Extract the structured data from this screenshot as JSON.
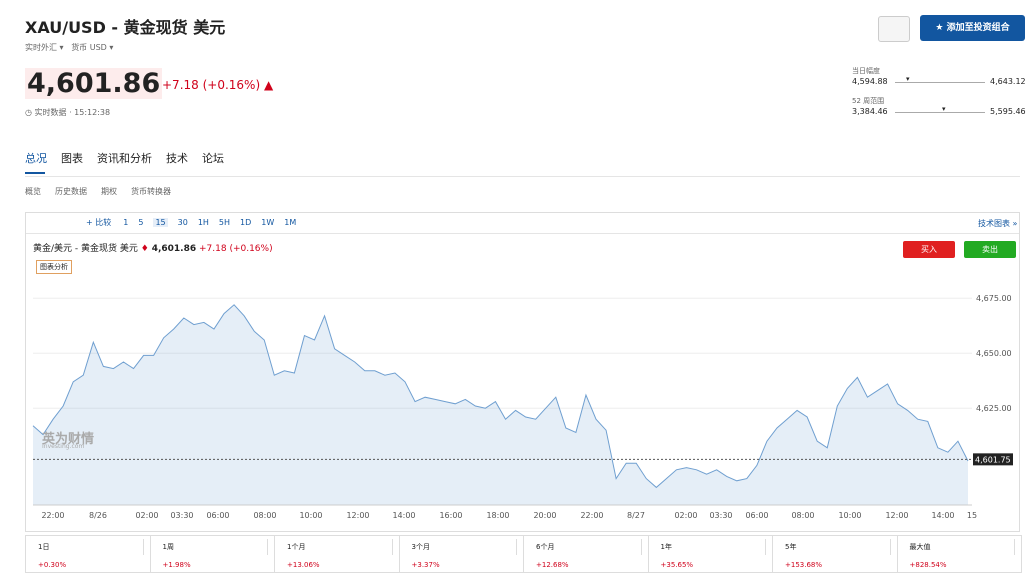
{
  "header": {
    "title": "XAU/USD - 黄金现货 美元",
    "market": "实时外汇",
    "currency_label": "货币",
    "currency": "USD",
    "price": "4,601.86",
    "change": "+7.18 (+0.16%)",
    "time": "实时数据 · 15:12:38",
    "add_button": "添加至投资组合"
  },
  "ranges": [
    {
      "label": "当日幅度",
      "low": "4,594.88",
      "high": "4,643.12"
    },
    {
      "label": "52 周范围",
      "low": "3,384.46",
      "high": "5,595.46"
    }
  ],
  "tabs": [
    "总况",
    "图表",
    "资讯和分析",
    "技术",
    "论坛"
  ],
  "subtabs": [
    "概览",
    "历史数据",
    "期权",
    "货币转换器"
  ],
  "toolbar": {
    "compare": "+ 比较",
    "intervals": [
      "1",
      "5",
      "15",
      "30",
      "1H",
      "5H",
      "1D",
      "1W",
      "1M"
    ],
    "advanced": "技术图表 »"
  },
  "chart_header": {
    "name": "黄金/美元 - 黄金现货 美元",
    "price": "4,601.86",
    "change": "+7.18 (+0.16%)",
    "analysis": "图表分析",
    "buy": "买入",
    "sell": "卖出",
    "watermark": "英为财情",
    "watermark_sub": "Investing.com"
  },
  "chart": {
    "type": "area",
    "color": "#6f9fd0",
    "values": [
      4617,
      4613,
      4620,
      4626,
      4637,
      4640,
      4655,
      4644,
      4643,
      4646,
      4643,
      4649,
      4649,
      4657,
      4661,
      4666,
      4663,
      4664,
      4661,
      4668,
      4672,
      4667,
      4660,
      4656,
      4640,
      4642,
      4641,
      4658,
      4656,
      4667,
      4652,
      4649,
      4646,
      4642,
      4642,
      4640,
      4641,
      4637,
      4628,
      4630,
      4629,
      4628,
      4627,
      4629,
      4626,
      4625,
      4628,
      4620,
      4624,
      4621,
      4620,
      4625,
      4630,
      4616,
      4614,
      4631,
      4620,
      4615,
      4593,
      4600,
      4600,
      4593,
      4589,
      4593,
      4597,
      4598,
      4597,
      4595,
      4597,
      4594,
      4592,
      4593,
      4599,
      4610,
      4616,
      4620,
      4624,
      4621,
      4610,
      4607,
      4626,
      4634,
      4639,
      4630,
      4633,
      4636,
      4627,
      4624,
      4620,
      4619,
      4607,
      4605,
      4610,
      4601
    ],
    "ylim": [
      4581,
      4681
    ],
    "yticks": [
      {
        "value": 4625,
        "label": "4,625.00"
      },
      {
        "value": 4650,
        "label": "4,650.00"
      },
      {
        "value": 4675,
        "label": "4,675.00"
      }
    ],
    "xticks": [
      "22:00",
      "8/26",
      "02:00",
      "03:30",
      "06:00",
      "08:00",
      "10:00",
      "12:00",
      "14:00",
      "16:00",
      "18:00",
      "20:00",
      "22:00",
      "8/27",
      "02:00",
      "03:30",
      "06:00",
      "08:00",
      "10:00",
      "12:00",
      "14:00",
      "15"
    ],
    "last": {
      "value": 4601.75,
      "label": "4,601.75"
    }
  },
  "performance": [
    {
      "period": "1日",
      "change": "+0.30%"
    },
    {
      "period": "1周",
      "change": "+1.98%"
    },
    {
      "period": "1个月",
      "change": "+13.06%"
    },
    {
      "period": "3个月",
      "change": "+3.37%"
    },
    {
      "period": "6个月",
      "change": "+12.68%"
    },
    {
      "period": "1年",
      "change": "+35.65%"
    },
    {
      "period": "5年",
      "change": "+153.68%"
    },
    {
      "period": "最大值",
      "change": "+828.54%"
    }
  ]
}
